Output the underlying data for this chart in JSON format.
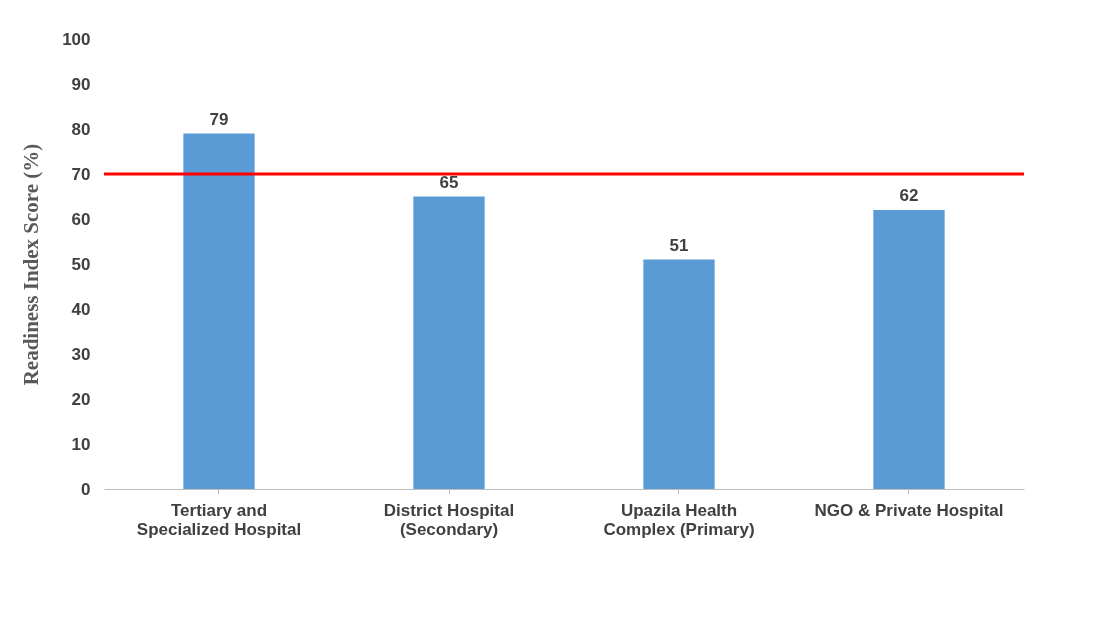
{
  "chart_data": {
    "type": "bar",
    "ylabel": "Readiness Index Score (%)",
    "categories": [
      "Tertiary and\nSpecialized Hospital",
      "District Hospital\n(Secondary)",
      "Upazila Health\nComplex  (Primary)",
      "NGO & Private Hospital"
    ],
    "values": [
      79,
      65,
      51,
      62
    ],
    "color": "#5b9bd5",
    "ylim": [
      0,
      100
    ],
    "yticks": [
      0,
      10,
      20,
      30,
      40,
      50,
      60,
      70,
      80,
      90,
      100
    ],
    "ref_lines": [
      {
        "axis": "y",
        "value": 70,
        "color": "#ff0000"
      }
    ],
    "data_labels": true,
    "grid": false
  }
}
